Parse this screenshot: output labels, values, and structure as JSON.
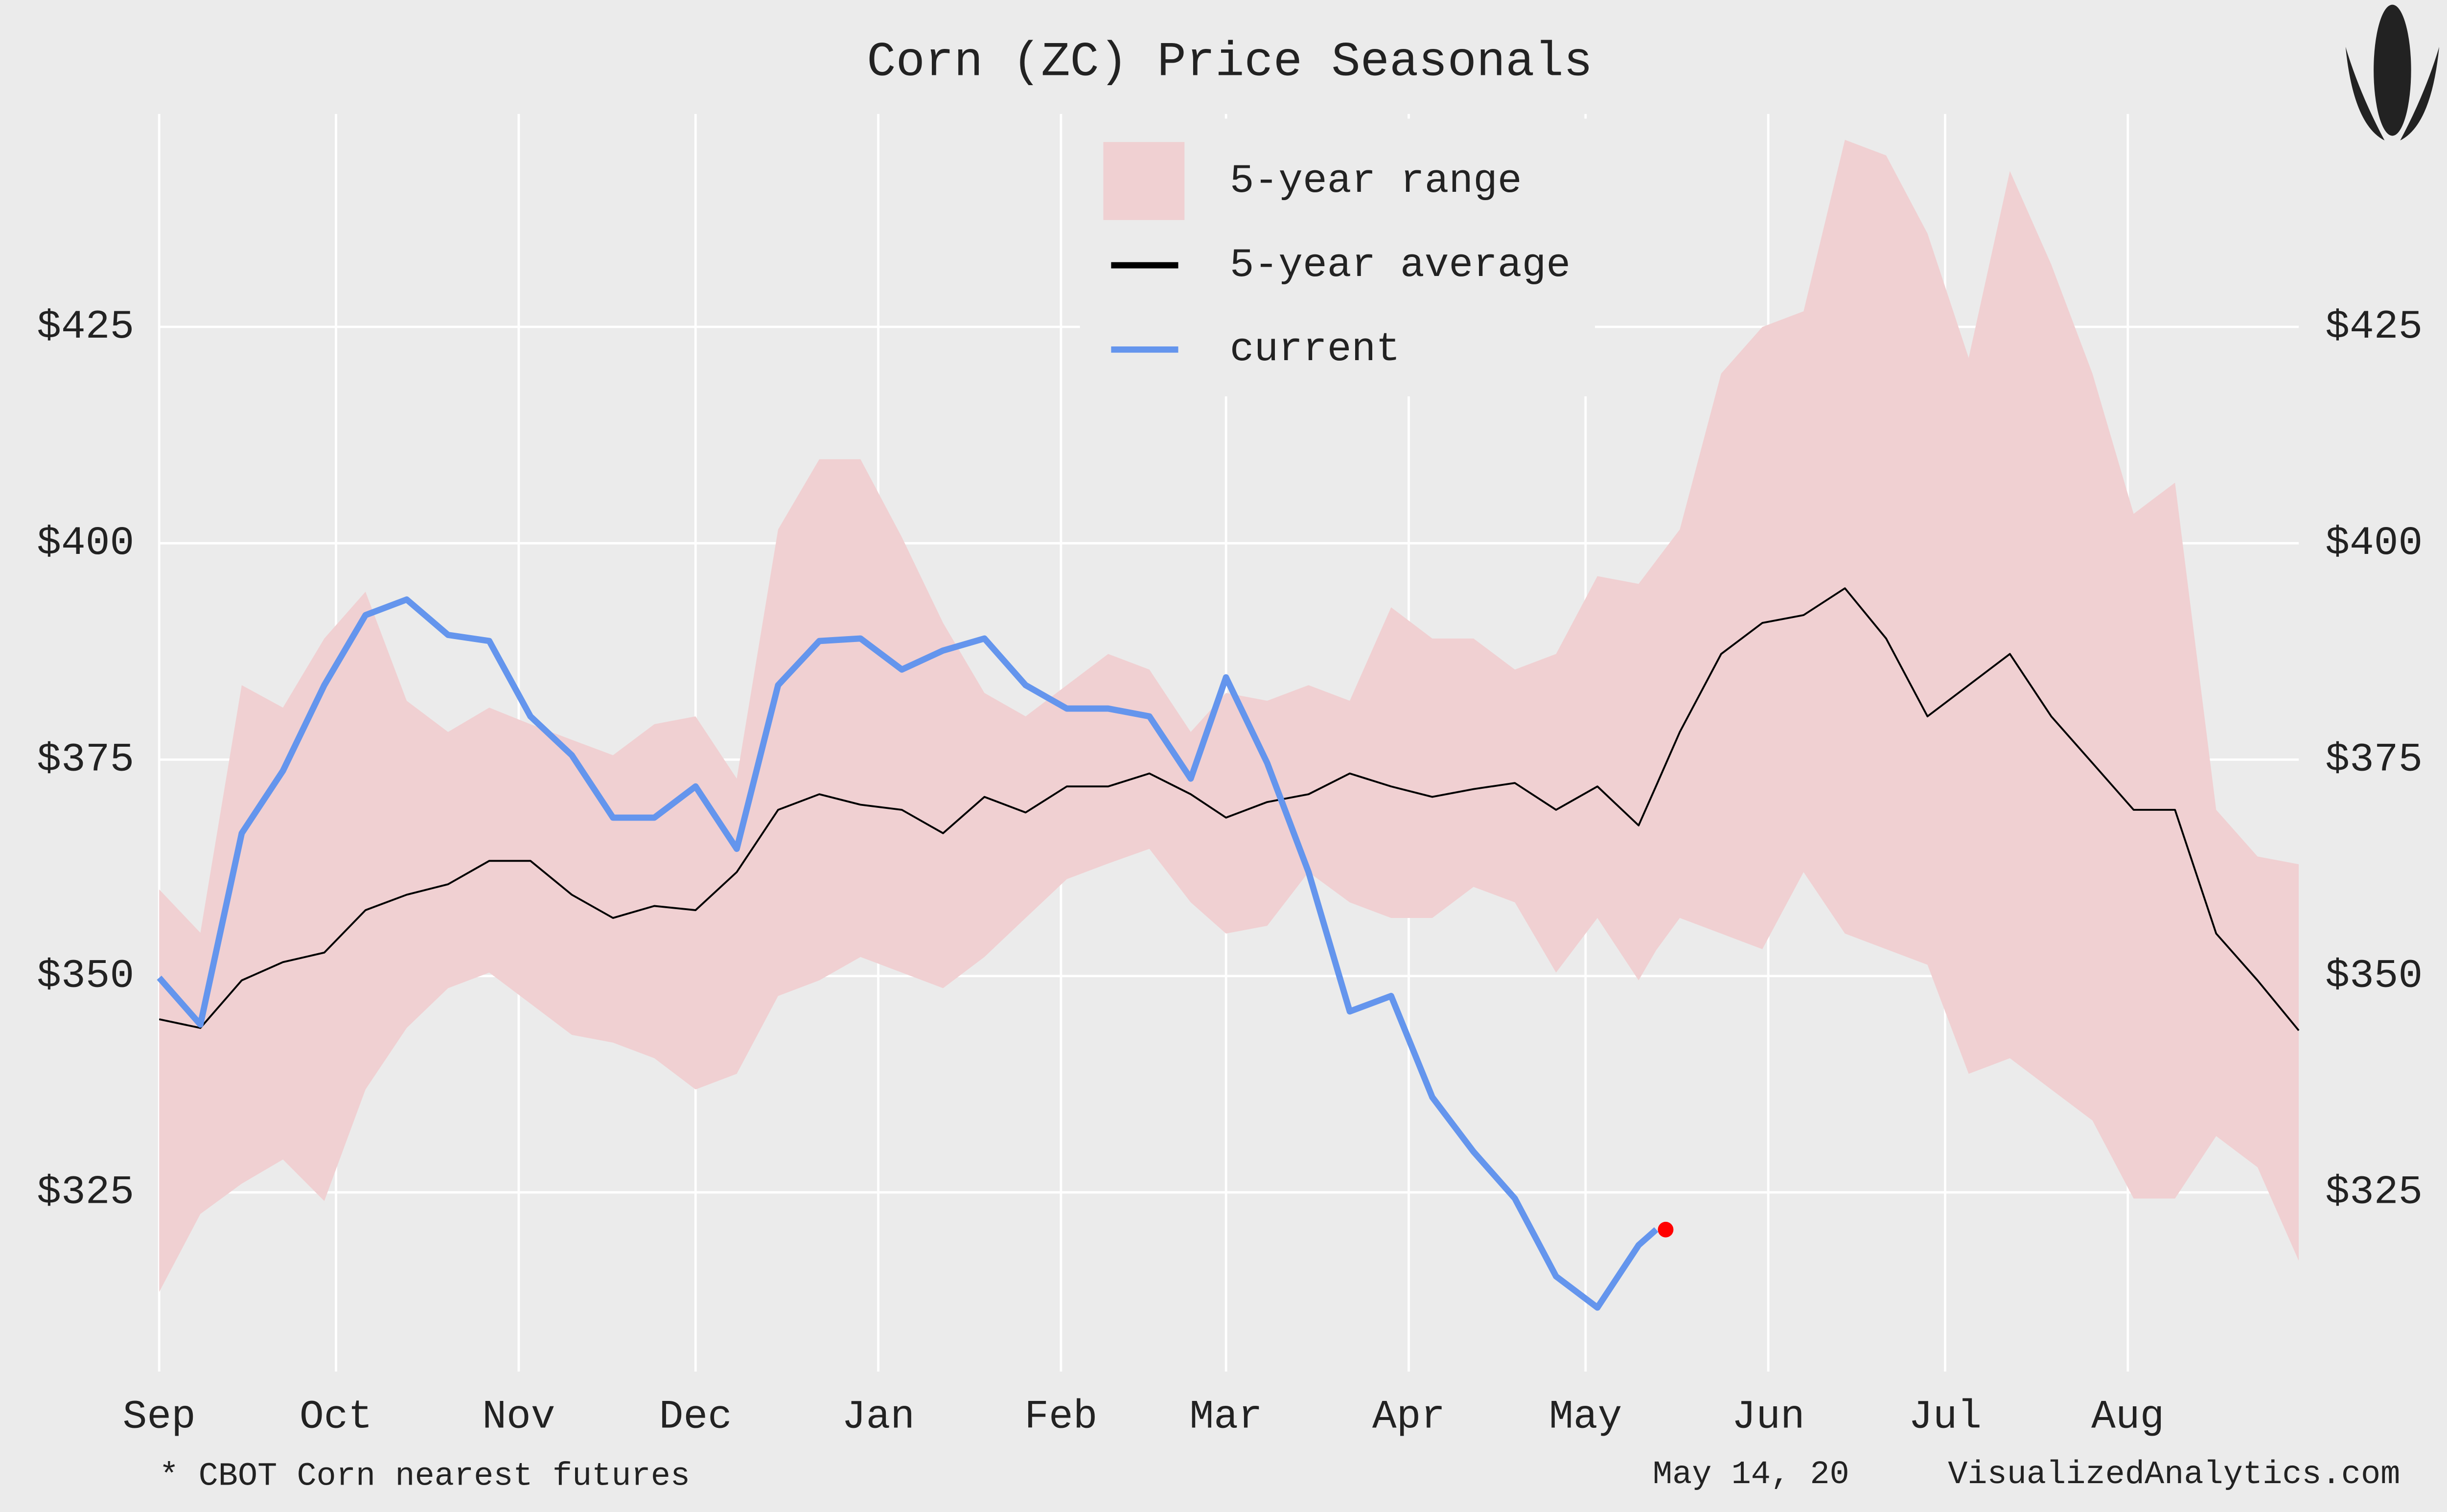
{
  "chart_data": {
    "type": "seasonal",
    "title": "Corn (ZC) Price Seasonals",
    "footnote": "* CBOT Corn nearest futures",
    "date": "May 14, 20",
    "source": "VisualizedAnalytics.com",
    "x": [
      0,
      7,
      14,
      21,
      28,
      35,
      42,
      49,
      56,
      63,
      70,
      77,
      84,
      91,
      98,
      105,
      112,
      119,
      126,
      133,
      140,
      147,
      154,
      161,
      168,
      175,
      181,
      188,
      195,
      202,
      209,
      216,
      223,
      230,
      237,
      244,
      251,
      254,
      258,
      265,
      272,
      279,
      286,
      293,
      300,
      307,
      314,
      321,
      328,
      335,
      342,
      349,
      356,
      363
    ],
    "xlim": [
      0,
      363
    ],
    "xticks": [
      {
        "value": 0,
        "label": "Sep"
      },
      {
        "value": 30,
        "label": "Oct"
      },
      {
        "value": 61,
        "label": "Nov"
      },
      {
        "value": 91,
        "label": "Dec"
      },
      {
        "value": 122,
        "label": "Jan"
      },
      {
        "value": 153,
        "label": "Feb"
      },
      {
        "value": 181,
        "label": "Mar"
      },
      {
        "value": 212,
        "label": "Apr"
      },
      {
        "value": 242,
        "label": "May"
      },
      {
        "value": 273,
        "label": "Jun"
      },
      {
        "value": 303,
        "label": "Jul"
      },
      {
        "value": 334,
        "label": "Aug"
      }
    ],
    "ylim": [
      304.3,
      449.6
    ],
    "yticks": [
      {
        "value": 325,
        "label": "$325"
      },
      {
        "value": 350,
        "label": "$350"
      },
      {
        "value": 375,
        "label": "$375"
      },
      {
        "value": 400,
        "label": "$400"
      },
      {
        "value": 425,
        "label": "$425"
      }
    ],
    "grid": true,
    "legend": "upper center",
    "last_point_color": "#ff0000",
    "series": [
      {
        "name": "5-year range",
        "color": "#f0d0d2",
        "upper": [
          360,
          355,
          383.6,
          381,
          389,
          394.4,
          381.8,
          378.2,
          381,
          379.1,
          377.3,
          375.5,
          379.1,
          380,
          372.8,
          401.6,
          409.7,
          409.7,
          400.7,
          390.8,
          382.7,
          380,
          383.6,
          387.2,
          385.4,
          378.2,
          382.7,
          381.8,
          383.6,
          381.8,
          392.6,
          389,
          389,
          385.4,
          387.2,
          396.2,
          395.3,
          398,
          401.6,
          419.6,
          425,
          426.8,
          446.6,
          444.8,
          435.8,
          421.4,
          443,
          432.2,
          419.6,
          403.4,
          407,
          369.2,
          363.8,
          362.9
        ],
        "lower": [
          313.5,
          322.5,
          326,
          328.8,
          324,
          336.9,
          344,
          348.6,
          350.4,
          346.8,
          343.2,
          342.3,
          340.5,
          336.9,
          338.7,
          347.7,
          349.5,
          352.2,
          350.4,
          348.6,
          352.2,
          356.7,
          361.2,
          363,
          364.7,
          358.5,
          354.9,
          355.8,
          362,
          358.5,
          356.7,
          356.7,
          360.3,
          358.5,
          350.4,
          356.7,
          349.5,
          353,
          356.7,
          354.9,
          353.1,
          362,
          354.9,
          353.1,
          351.3,
          338.7,
          340.5,
          336.9,
          333.3,
          324.3,
          324.3,
          331.5,
          327.9,
          317.1
        ]
      },
      {
        "name": "5-year average",
        "color": "#000000",
        "values": [
          345,
          344,
          349.5,
          351.6,
          352.7,
          357.6,
          359.4,
          360.6,
          363.3,
          363.3,
          359.4,
          356.7,
          358.1,
          357.6,
          362,
          369.2,
          371,
          369.8,
          369.2,
          366.5,
          370.7,
          368.9,
          371.9,
          371.9,
          373.4,
          371,
          368.3,
          370.1,
          371,
          373.4,
          371.9,
          370.7,
          371.6,
          372.3,
          369.2,
          371.9,
          367.4,
          372,
          378.2,
          387.2,
          390.8,
          391.7,
          394.8,
          389,
          380,
          383.6,
          387.2,
          380,
          374.6,
          369.2,
          369.2,
          354.9,
          349.5,
          343.7
        ]
      },
      {
        "name": "current",
        "color": "#6495ed",
        "values": [
          349.8,
          344.4,
          366.5,
          373.7,
          383.6,
          391.7,
          393.5,
          389.4,
          388.7,
          380,
          375.5,
          368.3,
          368.3,
          371.9,
          364.7,
          383.6,
          388.7,
          389,
          385.4,
          387.6,
          389,
          383.6,
          380.9,
          380.9,
          380,
          372.8,
          384.5,
          374.6,
          362,
          345.9,
          347.7,
          336,
          329.7,
          324.3,
          315.3,
          311.7,
          318.9,
          320.7,
          null,
          null,
          null,
          null,
          null,
          null,
          null,
          null,
          null,
          null,
          null,
          null,
          null,
          null,
          null,
          null
        ]
      }
    ]
  }
}
